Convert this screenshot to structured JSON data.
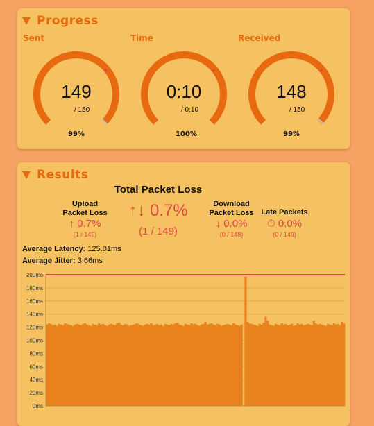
{
  "progress": {
    "title": "Progress",
    "sent": {
      "label": "Sent",
      "value": "149",
      "sub": "/ 150",
      "pct": "99%",
      "fraction": 0.993
    },
    "time": {
      "label": "Time",
      "value": "0:10",
      "sub": "/ 0:10",
      "pct": "100%",
      "fraction": 1.0
    },
    "received": {
      "label": "Received",
      "value": "148",
      "sub": "/ 150",
      "pct": "99%",
      "fraction": 0.987
    }
  },
  "results": {
    "title": "Results",
    "total": {
      "label": "Total Packet Loss",
      "value": "0.7%",
      "sub": "(1 / 149)",
      "icon": "up-down-arrows-icon"
    },
    "upload": {
      "label_line1": "Upload",
      "label_line2": "Packet Loss",
      "value": "0.7%",
      "sub": "(1 / 149)",
      "icon": "up-arrow-icon"
    },
    "download": {
      "label_line1": "Download",
      "label_line2": "Packet Loss",
      "value": "0.0%",
      "sub": "(0 / 148)",
      "icon": "down-arrow-icon"
    },
    "late": {
      "label": "Late Packets",
      "value": "0.0%",
      "sub": "(0 / 149)",
      "icon": "stopwatch-icon"
    },
    "latency": {
      "label": "Average Latency:",
      "value": "125.01ms"
    },
    "jitter": {
      "label": "Average Jitter:",
      "value": "3.66ms"
    }
  },
  "colors": {
    "accent": "#e86a10",
    "loss": "#e04848",
    "bar": "#e8821c",
    "card": "#f6c160",
    "background": "#f5a263"
  },
  "chart_data": {
    "type": "bar",
    "ylim": [
      0,
      200
    ],
    "yticks": [
      "0ms",
      "20ms",
      "40ms",
      "60ms",
      "80ms",
      "100ms",
      "120ms",
      "140ms",
      "160ms",
      "180ms",
      "200ms"
    ],
    "threshold": 200,
    "values": [
      124,
      126,
      125,
      123,
      124,
      122,
      125,
      124,
      123,
      126,
      125,
      124,
      123,
      122,
      124,
      125,
      124,
      123,
      125,
      126,
      124,
      123,
      122,
      125,
      124,
      123,
      126,
      124,
      125,
      123,
      122,
      124,
      125,
      124,
      123,
      126,
      127,
      124,
      123,
      125,
      124,
      122,
      123,
      124,
      125,
      126,
      124,
      123,
      122,
      124,
      125,
      124,
      126,
      123,
      124,
      125,
      123,
      124,
      122,
      125,
      124,
      123,
      125,
      124,
      126,
      127,
      124,
      123,
      122,
      125,
      124,
      123,
      126,
      124,
      125,
      123,
      122,
      124,
      125,
      128,
      124,
      125,
      126,
      124,
      123,
      125,
      124,
      122,
      123,
      124,
      125,
      124,
      123,
      126,
      124,
      123,
      122,
      124,
      0,
      197,
      128,
      126,
      125,
      124,
      123,
      122,
      125,
      124,
      127,
      136,
      130,
      124,
      123,
      122,
      125,
      124,
      123,
      126,
      124,
      125,
      123,
      124,
      125,
      122,
      123,
      126,
      124,
      125,
      123,
      124,
      125,
      124,
      123,
      130,
      126,
      124,
      125,
      124,
      123,
      122,
      125,
      124,
      123,
      126,
      124,
      125,
      123,
      128,
      126
    ]
  }
}
